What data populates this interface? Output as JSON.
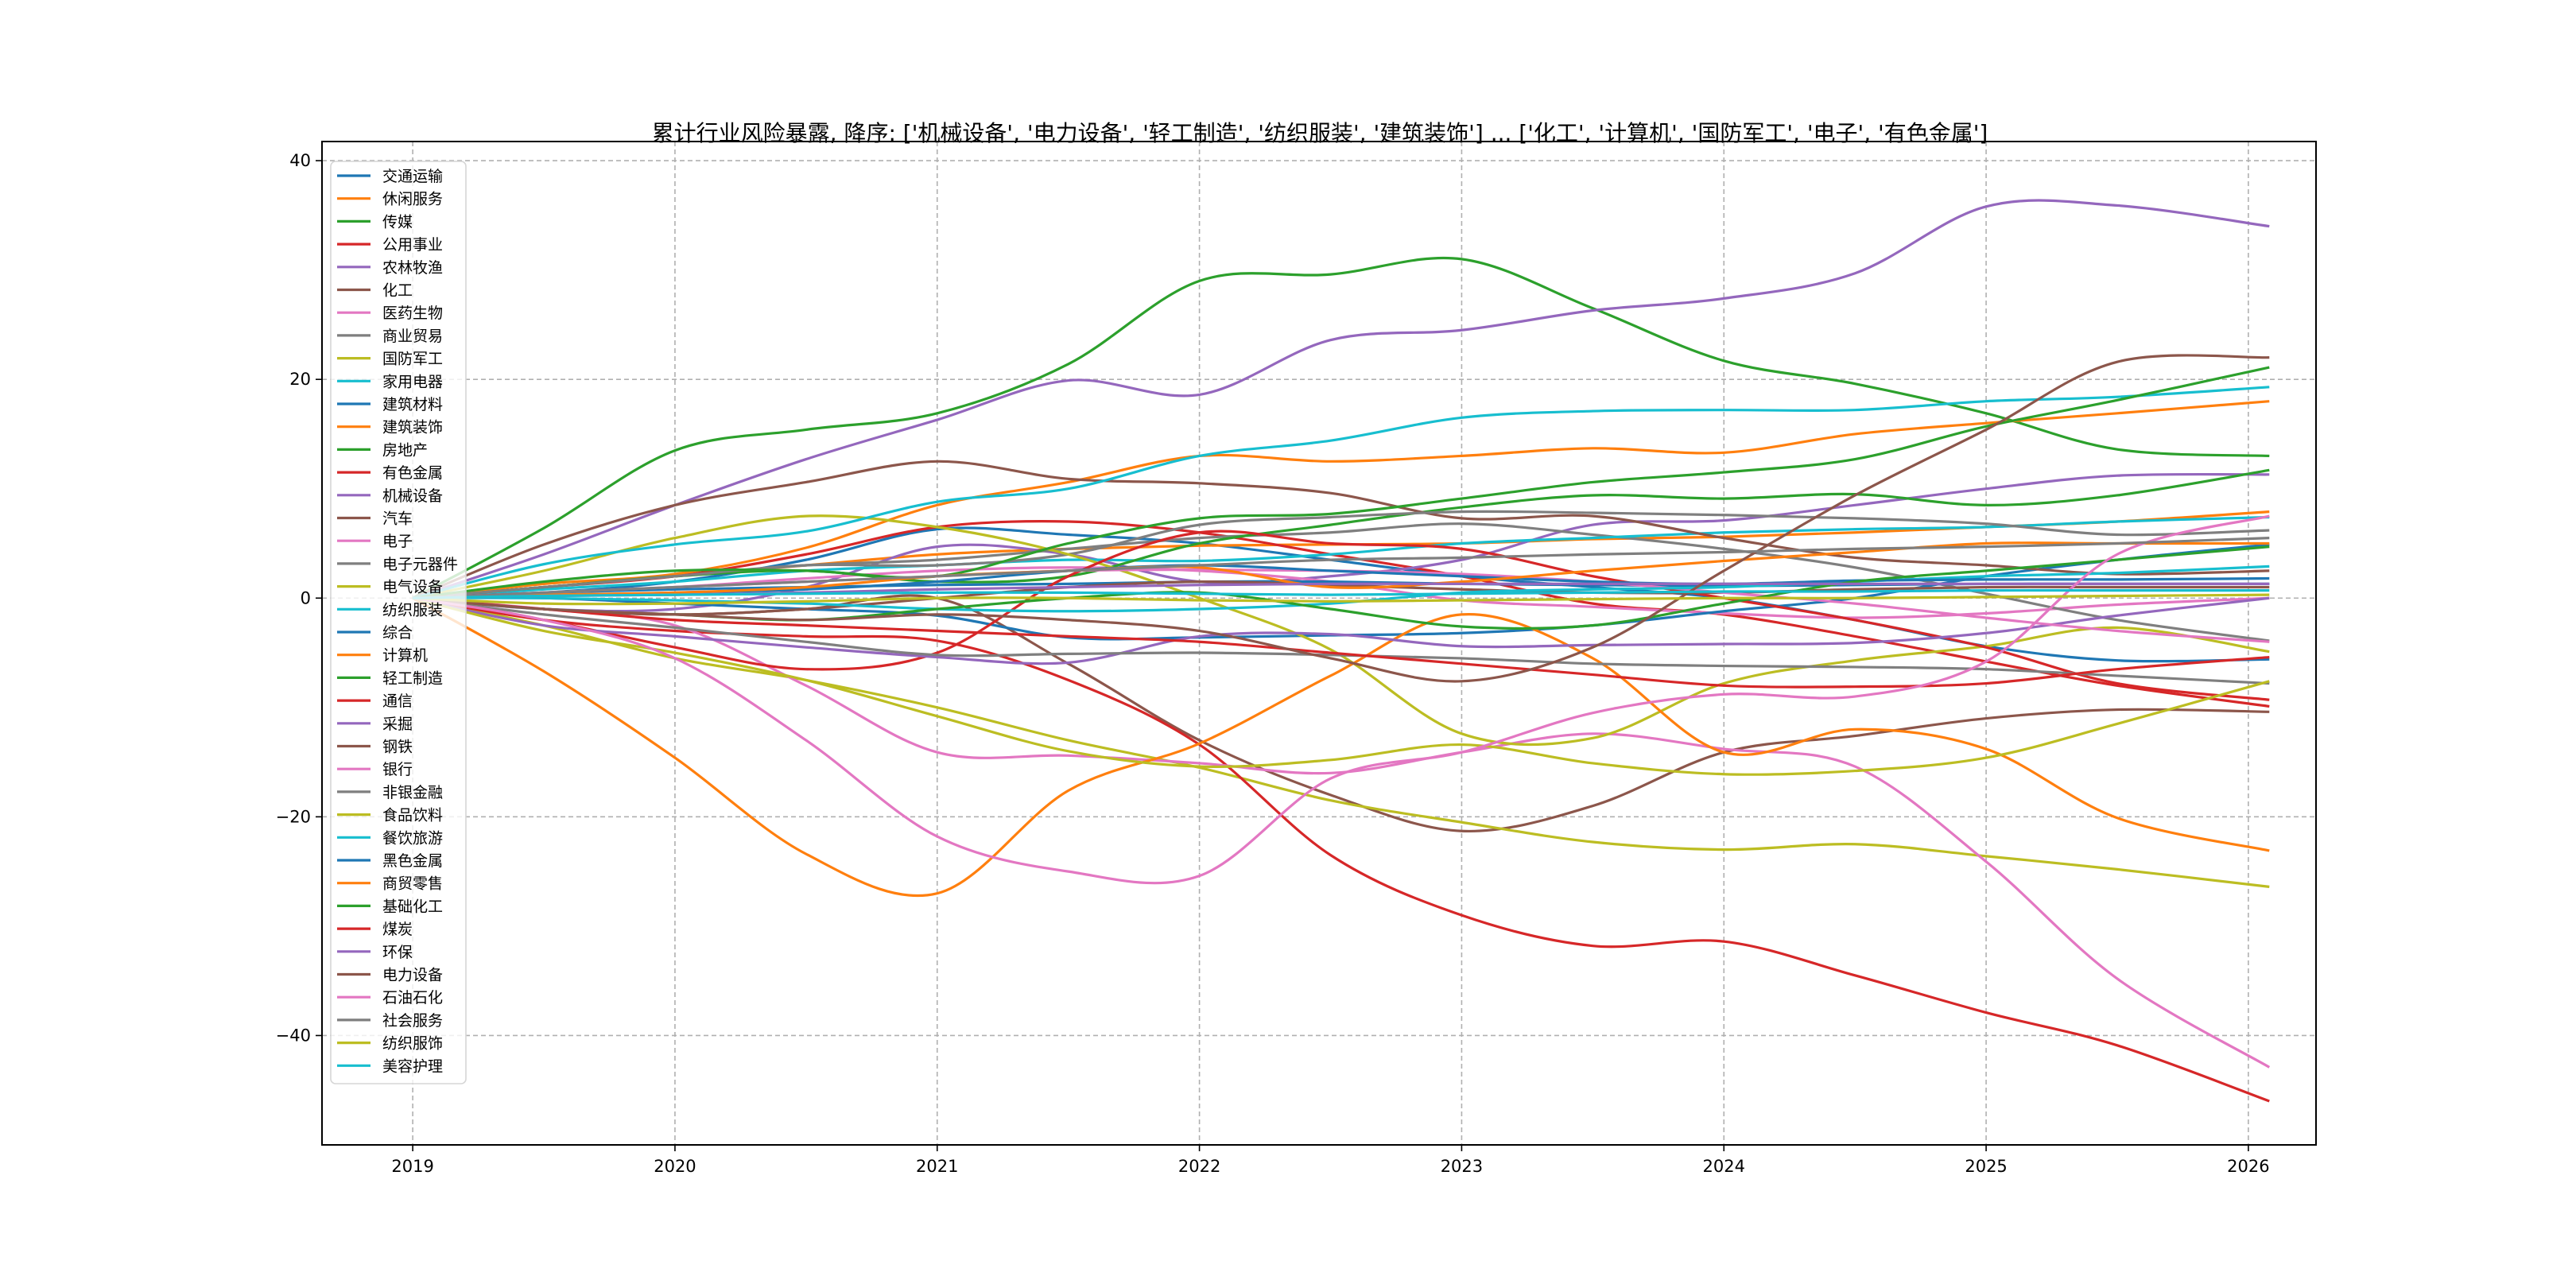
{
  "chart_data": {
    "type": "line",
    "title": "累计行业风险暴露, 降序: ['机械设备', '电力设备', '轻工制造', '纺织服装', '建筑装饰'] ... ['化工', '计算机', '国防军工', '电子', '有色金属']",
    "xlabel": "",
    "ylabel": "",
    "xlim": [
      2018.654,
      2026.258
    ],
    "ylim": [
      -50,
      41.75
    ],
    "x_ticks": [
      2019,
      2020,
      2021,
      2022,
      2023,
      2024,
      2025,
      2026
    ],
    "x_tick_labels": [
      "2019",
      "2020",
      "2021",
      "2022",
      "2023",
      "2024",
      "2025",
      "2026"
    ],
    "y_ticks": [
      -40,
      -20,
      0,
      20,
      40
    ],
    "y_tick_labels": [
      "−40",
      "−20",
      "0",
      "20",
      "40"
    ],
    "grid": true,
    "legend_position": "top-left",
    "x": [
      2019,
      2019.5,
      2020,
      2020.5,
      2021,
      2021.5,
      2022,
      2022.5,
      2023,
      2023.5,
      2024,
      2024.5,
      2025,
      2025.5,
      2026.08
    ],
    "series": [
      {
        "name": "交通运输",
        "color": "#1f77b4",
        "values": [
          0,
          0.5,
          1.5,
          3.5,
          6.3,
          5.8,
          5,
          3.5,
          2,
          1,
          0,
          -2,
          -4.4,
          -5.7,
          -5.6
        ]
      },
      {
        "name": "休闲服务",
        "color": "#ff7f0e",
        "values": [
          0,
          1,
          2,
          3,
          4,
          4.5,
          4.8,
          4.9,
          5,
          5.4,
          5.6,
          6,
          6.5,
          7,
          7.9
        ]
      },
      {
        "name": "传媒",
        "color": "#2ca02c",
        "values": [
          0,
          6.4,
          13.5,
          15.4,
          16.9,
          21.4,
          29,
          29.6,
          31,
          26.5,
          21.7,
          19.6,
          16.9,
          13.6,
          13
        ]
      },
      {
        "name": "公用事业",
        "color": "#d62728",
        "values": [
          0,
          1,
          2,
          4,
          6.5,
          7,
          6,
          4,
          2,
          -0.5,
          -1.5,
          -3.5,
          -5.8,
          -8,
          -9.9
        ]
      },
      {
        "name": "农林牧渔",
        "color": "#9467bd",
        "values": [
          0,
          -1,
          -1,
          1,
          4.7,
          4,
          1.5,
          2,
          3.5,
          6.7,
          7.1,
          8.5,
          10,
          11.2,
          11.3
        ]
      },
      {
        "name": "化工",
        "color": "#8c564b",
        "values": [
          0,
          -1,
          -1.5,
          -1,
          0,
          -6,
          -13,
          -18,
          -21.3,
          -19,
          -14.1,
          -12.6,
          -11,
          -10.2,
          -10.4
        ]
      },
      {
        "name": "医药生物",
        "color": "#e377c2",
        "values": [
          0,
          0.5,
          1,
          1.8,
          2.5,
          2.8,
          2.5,
          1.5,
          -0.2,
          -0.8,
          -1.4,
          -1.8,
          -1.4,
          -0.6,
          0
        ]
      },
      {
        "name": "商业贸易",
        "color": "#7f7f7f",
        "values": [
          0,
          1,
          2,
          3,
          3.5,
          4.5,
          5.5,
          6,
          6.8,
          5.8,
          4.5,
          2.8,
          0.4,
          -2,
          -3.9
        ]
      },
      {
        "name": "国防军工",
        "color": "#bcbd22",
        "values": [
          0,
          -2.5,
          -5.5,
          -7.5,
          -10,
          -13,
          -15.5,
          -18.5,
          -20.5,
          -22.3,
          -23,
          -22.5,
          -23.6,
          -24.8,
          -26.4
        ]
      },
      {
        "name": "家用电器",
        "color": "#17becf",
        "values": [
          0,
          0.8,
          1.5,
          2.5,
          3,
          3.5,
          3.4,
          4,
          5,
          5.5,
          6,
          6.3,
          6.5,
          7,
          7.4
        ]
      },
      {
        "name": "建筑材料",
        "color": "#1f77b4",
        "values": [
          0,
          0,
          -0.5,
          -1,
          -1.6,
          -3.6,
          -3.6,
          -3.4,
          -3.2,
          -2.5,
          -1.2,
          0,
          2,
          3.5,
          4.9
        ]
      },
      {
        "name": "建筑装饰",
        "color": "#ff7f0e",
        "values": [
          0,
          1.3,
          2.2,
          4.6,
          8.5,
          10.6,
          13,
          12.5,
          13,
          13.7,
          13.3,
          15,
          16,
          16.9,
          18
        ]
      },
      {
        "name": "房地产",
        "color": "#2ca02c",
        "values": [
          0,
          1,
          2,
          2.5,
          1.5,
          2,
          5,
          6.7,
          8.3,
          9.4,
          9.1,
          9.5,
          8.5,
          9.4,
          11.7
        ]
      },
      {
        "name": "有色金属",
        "color": "#d62728",
        "values": [
          0,
          -2,
          -3,
          -3.5,
          -3.9,
          -7.5,
          -13.4,
          -23.5,
          -29,
          -31.8,
          -31.4,
          -34.5,
          -37.9,
          -40.9,
          -46
        ]
      },
      {
        "name": "机械设备",
        "color": "#9467bd",
        "values": [
          0,
          4,
          8.5,
          12.7,
          16.3,
          19.9,
          18.6,
          23.6,
          24.5,
          26.3,
          27.4,
          29.7,
          35.8,
          35.9,
          34
        ]
      },
      {
        "name": "汽车",
        "color": "#8c564b",
        "values": [
          0,
          4.9,
          8.5,
          10.6,
          12.5,
          10.9,
          10.5,
          9.6,
          7.3,
          7.5,
          5.5,
          3.7,
          3,
          2.2,
          2.5
        ]
      },
      {
        "name": "电子",
        "color": "#e377c2",
        "values": [
          0,
          -1,
          -2.5,
          -8,
          -14.1,
          -14.4,
          -15.1,
          -16,
          -14.1,
          -12.4,
          -13.8,
          -15.4,
          -24.1,
          -34.8,
          -42.9
        ]
      },
      {
        "name": "电子元器件",
        "color": "#7f7f7f",
        "values": [
          0,
          1,
          2,
          3,
          3,
          4,
          6.7,
          7.4,
          7.9,
          7.8,
          7.6,
          7.3,
          6.8,
          5.8,
          6.2
        ]
      },
      {
        "name": "电气设备",
        "color": "#bcbd22",
        "values": [
          0,
          2.5,
          5.5,
          7.5,
          6.5,
          4,
          0,
          -4.7,
          -12.4,
          -12.8,
          -7.8,
          -5.7,
          -4.4,
          -2.7,
          -4.9
        ]
      },
      {
        "name": "纺织服装",
        "color": "#17becf",
        "values": [
          0,
          3.1,
          4.9,
          6.1,
          8.8,
          10,
          13,
          14.4,
          16.5,
          17.1,
          17.2,
          17.2,
          18,
          18.4,
          19.3
        ]
      },
      {
        "name": "综合",
        "color": "#1f77b4",
        "values": [
          0,
          0.5,
          0.8,
          1,
          1.2,
          1.3,
          1.5,
          1.5,
          1.3,
          1.2,
          1.1,
          1.2,
          1.3,
          1.3,
          1.3
        ]
      },
      {
        "name": "计算机",
        "color": "#ff7f0e",
        "values": [
          0,
          -6.7,
          -14.6,
          -23.4,
          -27,
          -17.6,
          -13.3,
          -7.1,
          -1.5,
          -5.5,
          -14.1,
          -12,
          -13.8,
          -20.1,
          -23.1
        ]
      },
      {
        "name": "轻工制造",
        "color": "#2ca02c",
        "values": [
          0,
          1.5,
          2.5,
          2.5,
          2,
          5,
          7.3,
          7.7,
          9.1,
          10.6,
          11.5,
          12.7,
          15.7,
          18.1,
          21.1
        ]
      },
      {
        "name": "通信",
        "color": "#d62728",
        "values": [
          0,
          -2,
          -4.5,
          -6.5,
          -5,
          2,
          6,
          5,
          4.5,
          2,
          0,
          -2,
          -4.5,
          -7.8,
          -9.3
        ]
      },
      {
        "name": "采掘",
        "color": "#9467bd",
        "values": [
          0,
          -2.5,
          -3.5,
          -4.5,
          -5.4,
          -5.9,
          -3.5,
          -3.3,
          -4.4,
          -4.3,
          -4.2,
          -4.1,
          -3.2,
          -1.6,
          0
        ]
      },
      {
        "name": "钢铁",
        "color": "#8c564b",
        "values": [
          0,
          -1,
          -1.5,
          -1,
          0,
          1,
          1.5,
          1.2,
          0.8,
          0.5,
          0.5,
          0.8,
          1,
          1,
          1
        ]
      },
      {
        "name": "银行",
        "color": "#e377c2",
        "values": [
          0,
          0.5,
          1,
          1.5,
          2,
          2.5,
          2.6,
          2.5,
          2.2,
          1.5,
          0.5,
          -0.5,
          -1.8,
          -3,
          -4
        ]
      },
      {
        "name": "非银金融",
        "color": "#7f7f7f",
        "values": [
          0,
          -1.5,
          -2.7,
          -4,
          -5.2,
          -5.1,
          -5,
          -5.2,
          -5.5,
          -6,
          -6.2,
          -6.3,
          -6.5,
          -7.1,
          -7.8
        ]
      },
      {
        "name": "食品饮料",
        "color": "#bcbd22",
        "values": [
          0,
          -3,
          -5,
          -7.5,
          -10.8,
          -14,
          -15.4,
          -14.8,
          -13.4,
          -15.1,
          -16.1,
          -15.8,
          -14.6,
          -11.5,
          -7.6
        ]
      },
      {
        "name": "餐饮旅游",
        "color": "#17becf",
        "values": [
          0,
          0,
          -0.2,
          -0.5,
          -1,
          -1.2,
          -1,
          -0.5,
          0.5,
          0.8,
          1,
          1.5,
          2,
          2.3,
          2.9
        ]
      },
      {
        "name": "黑色金属",
        "color": "#1f77b4",
        "values": [
          0,
          0.2,
          0.5,
          0.8,
          1.5,
          2.5,
          3,
          2.5,
          2,
          1.5,
          1.3,
          1.6,
          1.7,
          1.7,
          1.8
        ]
      },
      {
        "name": "商贸零售",
        "color": "#ff7f0e",
        "values": [
          0,
          0.3,
          0.5,
          1,
          2,
          2.5,
          2.8,
          1,
          1.5,
          2.5,
          3.4,
          4.2,
          5,
          5,
          5
        ]
      },
      {
        "name": "基础化工",
        "color": "#2ca02c",
        "values": [
          0,
          -1,
          -1.5,
          -2,
          -1,
          0,
          0.5,
          -1,
          -2.6,
          -2.5,
          -0.5,
          1.5,
          2.5,
          3.5,
          4.7
        ]
      },
      {
        "name": "煤炭",
        "color": "#d62728",
        "values": [
          0,
          -1,
          -2,
          -2.5,
          -3,
          -3.5,
          -4,
          -5,
          -6,
          -7,
          -8,
          -8.1,
          -7.8,
          -6.5,
          -5.4
        ]
      },
      {
        "name": "环保",
        "color": "#9467bd",
        "values": [
          0,
          0.2,
          0.3,
          0.5,
          0.8,
          1,
          1.2,
          1.3,
          1.3,
          1.3,
          1.3,
          1.3,
          1.3,
          1.3,
          1.3
        ]
      },
      {
        "name": "电力设备",
        "color": "#8c564b",
        "values": [
          0,
          -1,
          -1.5,
          -2,
          -1.5,
          -2,
          -3,
          -5.5,
          -7.6,
          -4.5,
          2.5,
          9.4,
          15.4,
          21.6,
          22
        ]
      },
      {
        "name": "石油石化",
        "color": "#e377c2",
        "values": [
          0,
          -2,
          -5.5,
          -13,
          -21.8,
          -25,
          -25.4,
          -16.5,
          -14.1,
          -10.5,
          -8.8,
          -9,
          -5.8,
          4,
          7.5
        ]
      },
      {
        "name": "社会服务",
        "color": "#7f7f7f",
        "values": [
          0,
          0.5,
          1,
          1.5,
          2,
          2.5,
          3,
          3.5,
          3.7,
          4,
          4.2,
          4.5,
          4.7,
          5,
          5.5
        ]
      },
      {
        "name": "纺织服饰",
        "color": "#bcbd22",
        "values": [
          0,
          -0.5,
          -0.5,
          -0.3,
          0,
          0,
          -0.2,
          -0.3,
          -0.2,
          -0.1,
          0,
          0,
          0.1,
          0.2,
          0.3
        ]
      },
      {
        "name": "美容护理",
        "color": "#17becf",
        "values": [
          0,
          0.2,
          0.3,
          0.4,
          0.5,
          0.5,
          0.4,
          0.3,
          0.4,
          0.5,
          0.6,
          0.6,
          0.7,
          0.7,
          0.7
        ]
      }
    ]
  }
}
